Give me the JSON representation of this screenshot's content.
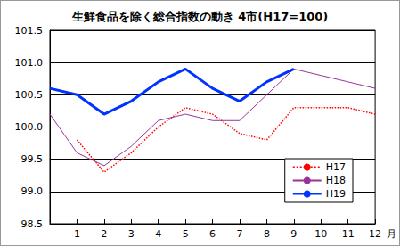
{
  "chart_data": {
    "type": "line",
    "title": "生鮮食品を除く総合指数の動き 4市(H17=100)",
    "x_label": "月",
    "categories": [
      null,
      "1",
      "2",
      "3",
      "4",
      "5",
      "6",
      "7",
      "8",
      "9",
      "10",
      "11",
      "12"
    ],
    "series": [
      {
        "name": "H17",
        "color": "#ff0000",
        "line_style": "dotted",
        "values": [
          null,
          99.8,
          99.3,
          99.6,
          100.0,
          100.3,
          100.2,
          99.9,
          99.8,
          100.3,
          100.3,
          100.3,
          100.2
        ]
      },
      {
        "name": "H18",
        "color": "#993399",
        "line_style": "solid",
        "values": [
          100.2,
          99.6,
          99.4,
          99.7,
          100.1,
          100.2,
          100.1,
          100.1,
          100.5,
          100.9,
          100.8,
          100.7,
          100.6
        ]
      },
      {
        "name": "H19",
        "color": "#0033ff",
        "line_style": "solid",
        "values": [
          100.6,
          100.5,
          100.2,
          100.4,
          100.7,
          100.9,
          100.6,
          100.4,
          100.7,
          100.9,
          null,
          null,
          null
        ]
      }
    ],
    "ylim": [
      98.5,
      101.5
    ],
    "yticks": [
      98.5,
      {
        "value": 99,
        "label": "99.0"
      },
      99.5,
      {
        "value": 100,
        "label": "100.0"
      },
      100.5,
      {
        "value": 101,
        "label": "101.0"
      },
      101.5
    ],
    "grid": true,
    "legend": "lower right"
  }
}
